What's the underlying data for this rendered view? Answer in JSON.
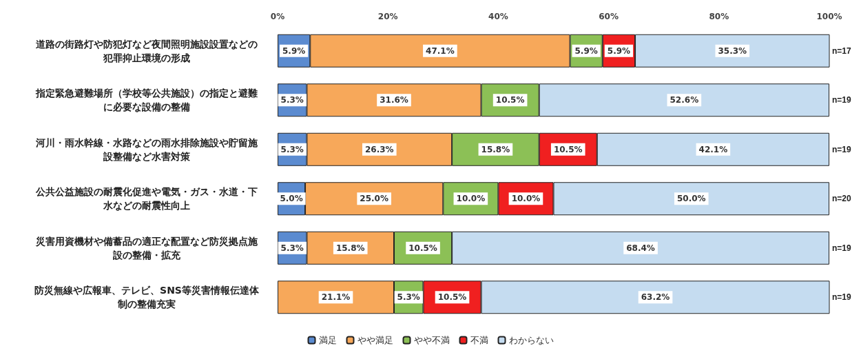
{
  "chart_data": {
    "type": "bar",
    "orientation": "horizontal",
    "stacked": true,
    "categories": [
      "道路の街路灯や防犯灯など夜間照明施設設置などの犯罪抑止環境の形成",
      "指定緊急避難場所（学校等公共施設）の指定と避難に必要な設備の整備",
      "河川・雨水幹線・水路などの雨水排除施設や貯留施設整備など水害対策",
      "公共公益施設の耐震化促進や電気・ガス・水道・下水などの耐震性向上",
      "災害用資機材や備蓄品の適正な配置など防災拠点施設の整備・拡充",
      "防災無線や広報車、テレビ、SNS等災害情報伝達体制の整備充実"
    ],
    "series": [
      {
        "name": "満足",
        "color": "#5b8bd0",
        "values": [
          5.9,
          5.3,
          5.3,
          5.0,
          5.3,
          null
        ],
        "value_labels": [
          "5.9%",
          "5.3%",
          "5.3%",
          "5.0%",
          "5.3%",
          null
        ]
      },
      {
        "name": "やや満足",
        "color": "#f7a85a",
        "values": [
          47.1,
          31.6,
          26.3,
          25.0,
          15.8,
          21.1
        ],
        "value_labels": [
          "47.1%",
          "31.6%",
          "26.3%",
          "25.0%",
          "15.8%",
          "21.1%"
        ]
      },
      {
        "name": "やや不満",
        "color": "#8cc056",
        "values": [
          5.9,
          10.5,
          15.8,
          10.0,
          10.5,
          5.3
        ],
        "value_labels": [
          "5.9%",
          "10.5%",
          "15.8%",
          "10.0%",
          "10.5%",
          "5.3%"
        ]
      },
      {
        "name": "不満",
        "color": "#f02020",
        "values": [
          5.9,
          null,
          10.5,
          10.0,
          null,
          10.5
        ],
        "value_labels": [
          "5.9%",
          null,
          "10.5%",
          "10.0%",
          null,
          "10.5%"
        ]
      },
      {
        "name": "わからない",
        "color": "#c5dcf0",
        "values": [
          35.3,
          52.6,
          42.1,
          50.0,
          68.4,
          63.2
        ],
        "value_labels": [
          "35.3%",
          "52.6%",
          "42.1%",
          "50.0%",
          "68.4%",
          "63.2%"
        ]
      }
    ],
    "xlim": [
      0,
      100
    ],
    "xticks": [
      {
        "value": 0,
        "label": "0%"
      },
      {
        "value": 20,
        "label": "20%"
      },
      {
        "value": 40,
        "label": "40%"
      },
      {
        "value": 60,
        "label": "60%"
      },
      {
        "value": 80,
        "label": "80%"
      },
      {
        "value": 100,
        "label": "100%"
      }
    ],
    "grid": false,
    "legend": "bottom",
    "annotations": [
      "n=17",
      "n=19",
      "n=19",
      "n=20",
      "n=19",
      "n=19"
    ]
  }
}
